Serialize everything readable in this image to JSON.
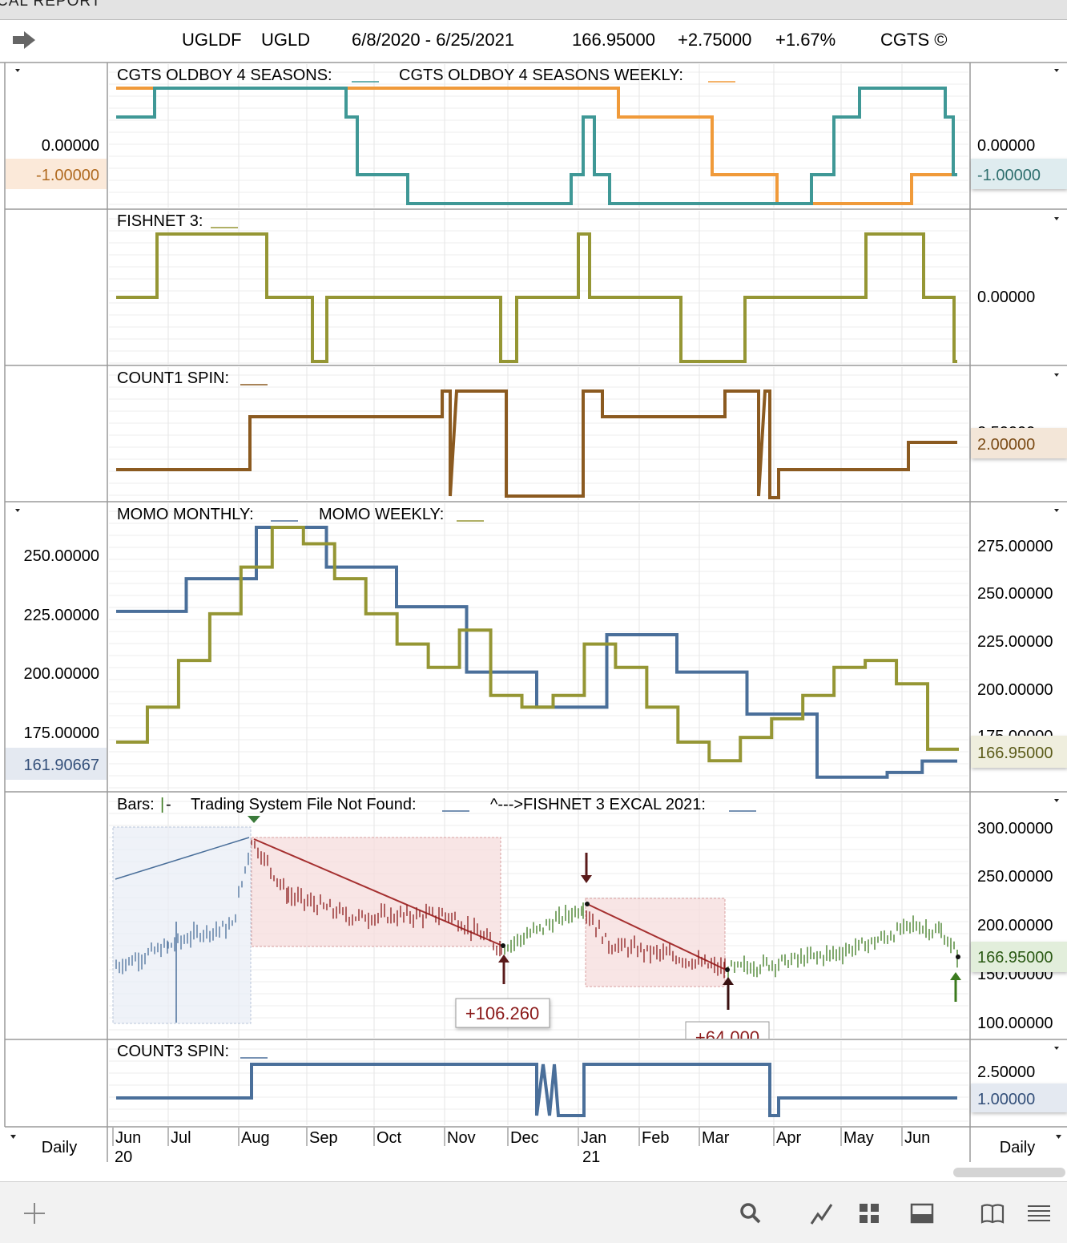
{
  "window": {
    "title": "CAL REPORT"
  },
  "header": {
    "symbol": "UGLDF",
    "ticker": "UGLD",
    "date_range": "6/8/2020 - 6/25/2021",
    "price": "166.95000",
    "change": "+2.75000",
    "change_pct": "+1.67%",
    "brand": "CGTS ©"
  },
  "panels": {
    "p1": {
      "title1": "CGTS OLDBOY 4 SEASONS:",
      "title2": "CGTS OLDBOY 4 SEASONS WEEKLY:",
      "left_ticks": [
        "0.00000"
      ],
      "left_badge": "-1.00000",
      "right_ticks": [
        "0.00000"
      ],
      "right_badge": "-1.00000"
    },
    "p2": {
      "title": "FISHNET 3:",
      "right_ticks": [
        "0.00000"
      ]
    },
    "p3": {
      "title": "COUNT1 SPIN:",
      "right_partial": "2.50000",
      "right_badge": "2.00000"
    },
    "p4": {
      "title1": "MOMO MONTHLY:",
      "title2": "MOMO WEEKLY:",
      "left_ticks": [
        "250.00000",
        "225.00000",
        "200.00000",
        "175.00000"
      ],
      "left_badge": "161.90667",
      "right_ticks": [
        "275.00000",
        "250.00000",
        "225.00000",
        "200.00000"
      ],
      "right_partial": "175.00000",
      "right_badge": "166.95000"
    },
    "p5": {
      "title_bars": "Bars:",
      "title_sys": "Trading System File Not Found:",
      "title_fish": "^--->FISHNET 3 EXCAL 2021:",
      "right_ticks": [
        "300.00000",
        "250.00000",
        "200.00000",
        "100.00000"
      ],
      "right_partial": "150.00000",
      "right_badge": "166.95000",
      "trade1": "+106.260",
      "trade2": "+64.000"
    },
    "p6": {
      "title": "COUNT3 SPIN:",
      "right_ticks": [
        "2.50000"
      ],
      "right_badge": "1.00000"
    }
  },
  "xaxis": {
    "months": [
      "Jun",
      "Jul",
      "Aug",
      "Sep",
      "Oct",
      "Nov",
      "Dec",
      "Jan",
      "Feb",
      "Mar",
      "Apr",
      "May",
      "Jun"
    ],
    "years": [
      "20",
      "21"
    ],
    "left_label": "Daily",
    "right_label": "Daily"
  },
  "colors": {
    "teal": "#3f9896",
    "orange": "#f09a3a",
    "olive": "#959634",
    "brown": "#8b5a20",
    "blue": "#4a6f9a",
    "red": "#8b1a1a",
    "green": "#3b7a1e"
  },
  "chart_data": [
    {
      "type": "line",
      "title": "CGTS OLDBOY 4 SEASONS",
      "x": [
        "Jun 20",
        "Jul",
        "Aug",
        "Sep",
        "Oct",
        "Nov",
        "Dec",
        "Jan 21",
        "Feb",
        "Mar",
        "Apr",
        "May",
        "Jun"
      ],
      "series": [
        {
          "name": "CGTS OLDBOY 4 SEASONS",
          "values": [
            0,
            1,
            1,
            1,
            -2,
            -2,
            -2,
            -2,
            0,
            -2,
            -2,
            1,
            -1
          ]
        },
        {
          "name": "CGTS OLDBOY 4 SEASONS WEEKLY",
          "values": [
            1,
            1,
            1,
            1,
            1,
            1,
            1,
            1,
            0,
            -1,
            -2,
            -2,
            -1
          ]
        }
      ]
    },
    {
      "type": "line",
      "title": "FISHNET 3",
      "series": [
        {
          "name": "FISHNET 3",
          "values": [
            0,
            1,
            1,
            0,
            -1,
            0,
            0,
            0,
            1,
            0,
            -1,
            0,
            1,
            0,
            -1
          ]
        }
      ]
    },
    {
      "type": "line",
      "title": "COUNT1 SPIN",
      "series": [
        {
          "name": "COUNT1 SPIN",
          "values": [
            1,
            1,
            2,
            2,
            2,
            3,
            1,
            1,
            3,
            2,
            2,
            3,
            0,
            1,
            1,
            2
          ]
        }
      ]
    },
    {
      "type": "line",
      "title": "MOMO",
      "ylim": [
        155,
        285
      ],
      "series": [
        {
          "name": "MOMO MONTHLY",
          "values": [
            226,
            226,
            240,
            240,
            262,
            262,
            245,
            245,
            228,
            228,
            200,
            200,
            185,
            185,
            216,
            216,
            200,
            200,
            182,
            182,
            155,
            155,
            157,
            161.9
          ]
        },
        {
          "name": "MOMO WEEKLY",
          "values": [
            170,
            185,
            205,
            225,
            245,
            262,
            255,
            240,
            225,
            212,
            202,
            218,
            190,
            185,
            190,
            212,
            202,
            185,
            170,
            162,
            172,
            180,
            190,
            202,
            205,
            195,
            166.95
          ]
        }
      ]
    },
    {
      "type": "bar",
      "title": "UGLD Daily Bars",
      "ylim": [
        90,
        310
      ],
      "series": [
        {
          "name": "Close",
          "values": [
            158,
            178,
            192,
            198,
            287,
            230,
            208,
            210,
            176,
            218,
            180,
            168,
            154,
            160,
            170,
            185,
            200,
            192,
            166.95
          ]
        }
      ]
    },
    {
      "type": "line",
      "title": "COUNT3 SPIN",
      "series": [
        {
          "name": "COUNT3 SPIN",
          "values": [
            1,
            1,
            3,
            3,
            3,
            0,
            3,
            0,
            3,
            3,
            0,
            1,
            1
          ]
        }
      ]
    }
  ]
}
